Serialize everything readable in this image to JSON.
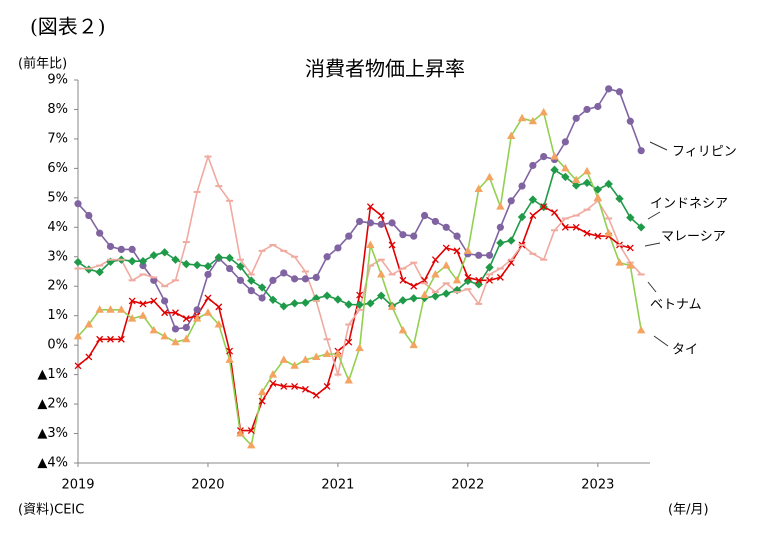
{
  "chart_data": {
    "type": "line",
    "label": "(図表２)",
    "title": "消費者物価上昇率",
    "y_label": "(前年比)",
    "source": "(資料)CEIC",
    "x_label": "(年/月)",
    "categories": [
      "2019",
      null,
      null,
      null,
      null,
      null,
      null,
      null,
      null,
      null,
      null,
      null,
      "2020",
      null,
      null,
      null,
      null,
      null,
      null,
      null,
      null,
      null,
      null,
      null,
      "2021",
      null,
      null,
      null,
      null,
      null,
      null,
      null,
      null,
      null,
      null,
      null,
      "2022",
      null,
      null,
      null,
      null,
      null,
      null,
      null,
      null,
      null,
      null,
      null,
      "2023",
      null,
      null,
      null,
      null
    ],
    "ylim": [
      -4,
      9
    ],
    "yticks": [
      {
        "value": 9,
        "label": "9%"
      },
      {
        "value": 8,
        "label": "8%"
      },
      {
        "value": 7,
        "label": "7%"
      },
      {
        "value": 6,
        "label": "6%"
      },
      {
        "value": 5,
        "label": "5%"
      },
      {
        "value": 4,
        "label": "4%"
      },
      {
        "value": 3,
        "label": "3%"
      },
      {
        "value": 2,
        "label": "2%"
      },
      {
        "value": 1,
        "label": "1%"
      },
      {
        "value": 0,
        "label": "0%"
      },
      {
        "value": -1,
        "label": "▲1%"
      },
      {
        "value": -2,
        "label": "▲2%"
      },
      {
        "value": -3,
        "label": "▲3%"
      },
      {
        "value": -4,
        "label": "▲4%"
      }
    ],
    "grid": false,
    "series": [
      {
        "name": "フィリピン",
        "color": "#8064a2",
        "marker_color": "#8064a2",
        "marker": "circle",
        "values": [
          4.8,
          4.4,
          3.8,
          3.35,
          3.25,
          3.25,
          2.7,
          2.2,
          1.5,
          0.55,
          0.6,
          1.2,
          2.4,
          2.95,
          2.6,
          2.2,
          1.85,
          1.6,
          2.2,
          2.45,
          2.25,
          2.25,
          2.3,
          3.0,
          3.3,
          3.7,
          4.2,
          4.15,
          4.1,
          4.15,
          3.75,
          3.7,
          4.4,
          4.2,
          4.0,
          3.7,
          3.1,
          3.05,
          3.05,
          4.0,
          4.9,
          5.4,
          6.1,
          6.4,
          6.3,
          6.9,
          7.7,
          8.0,
          8.1,
          8.7,
          8.6,
          7.6,
          6.6
        ]
      },
      {
        "name": "インドネシア",
        "color": "#1f9a48",
        "marker_color": "#1f9a48",
        "marker": "diamond",
        "values": [
          2.82,
          2.57,
          2.48,
          2.83,
          2.9,
          2.85,
          2.85,
          3.05,
          3.15,
          2.9,
          2.75,
          2.72,
          2.68,
          2.98,
          2.96,
          2.67,
          2.19,
          1.96,
          1.54,
          1.32,
          1.42,
          1.44,
          1.59,
          1.68,
          1.55,
          1.38,
          1.37,
          1.42,
          1.68,
          1.33,
          1.52,
          1.59,
          1.6,
          1.66,
          1.75,
          1.87,
          2.18,
          2.06,
          2.64,
          3.47,
          3.55,
          4.35,
          4.94,
          4.69,
          5.95,
          5.71,
          5.42,
          5.51,
          5.28,
          5.47,
          4.97,
          4.33,
          4.0
        ]
      },
      {
        "name": "マレーシア",
        "color": "#e00000",
        "marker_color": "#e00000",
        "marker": "x",
        "values": [
          -0.7,
          -0.4,
          0.2,
          0.2,
          0.2,
          1.5,
          1.4,
          1.5,
          1.1,
          1.1,
          0.9,
          1.0,
          1.6,
          1.3,
          -0.2,
          -2.9,
          -2.9,
          -1.9,
          -1.3,
          -1.4,
          -1.4,
          -1.5,
          -1.7,
          -1.4,
          -0.2,
          0.1,
          1.7,
          4.7,
          4.4,
          3.4,
          2.2,
          2.0,
          2.2,
          2.9,
          3.3,
          3.2,
          2.3,
          2.2,
          2.2,
          2.3,
          2.8,
          3.4,
          4.4,
          4.7,
          4.5,
          4.0,
          4.0,
          3.8,
          3.7,
          3.7,
          3.4,
          3.3,
          null
        ]
      },
      {
        "name": "ベトナム",
        "color": "#f0aaa0",
        "marker_color": "#f0aaa0",
        "marker": "dash",
        "values": [
          2.6,
          2.6,
          2.7,
          2.9,
          2.9,
          2.2,
          2.4,
          2.3,
          2.0,
          2.2,
          3.5,
          5.2,
          6.4,
          5.4,
          4.9,
          2.9,
          2.4,
          3.2,
          3.4,
          3.2,
          3.0,
          2.5,
          1.5,
          0.2,
          -1.0,
          0.7,
          1.2,
          2.7,
          2.9,
          2.4,
          2.6,
          2.8,
          2.1,
          1.8,
          2.1,
          1.8,
          1.9,
          1.4,
          2.4,
          2.6,
          2.9,
          3.4,
          3.1,
          2.9,
          3.9,
          4.3,
          4.4,
          4.6,
          4.9,
          4.3,
          3.4,
          2.8,
          2.4
        ]
      },
      {
        "name": "タイ",
        "color": "#92d050",
        "marker_color": "#f4a460",
        "marker": "triangle",
        "values": [
          0.3,
          0.7,
          1.2,
          1.2,
          1.2,
          0.9,
          1.0,
          0.5,
          0.3,
          0.1,
          0.2,
          0.9,
          1.1,
          0.7,
          -0.5,
          -3.0,
          -3.4,
          -1.6,
          -1.0,
          -0.5,
          -0.7,
          -0.5,
          -0.4,
          -0.3,
          -0.3,
          -1.2,
          -0.1,
          3.4,
          2.4,
          1.3,
          0.5,
          0.0,
          1.7,
          2.4,
          2.7,
          2.2,
          3.2,
          5.3,
          5.7,
          4.7,
          7.1,
          7.7,
          7.6,
          7.9,
          6.4,
          6.0,
          5.6,
          5.9,
          5.0,
          3.8,
          2.8,
          2.7,
          0.5
        ]
      }
    ]
  }
}
